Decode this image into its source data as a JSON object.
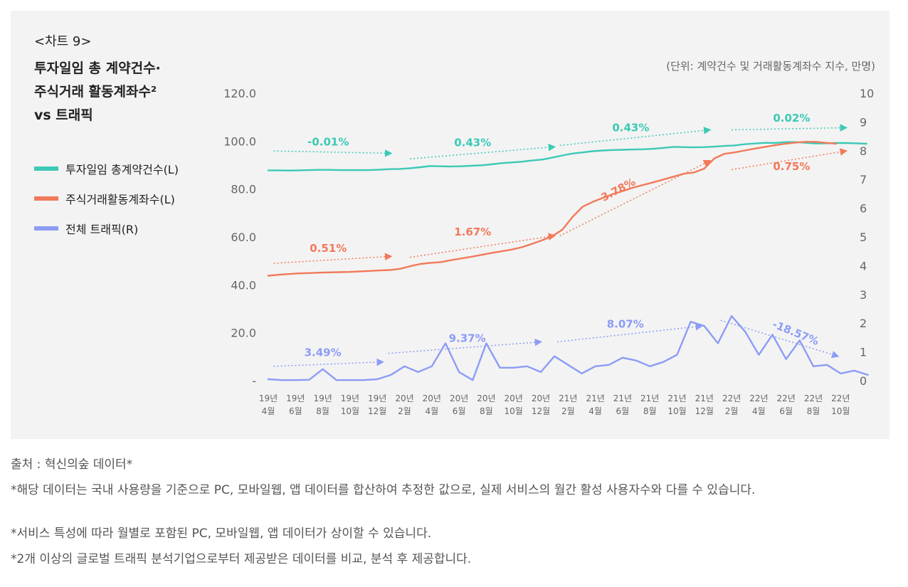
{
  "chart_label": "<차트 9>",
  "title_lines": [
    "투자일임 총 계약건수·",
    "주식거래 활동계좌수²",
    "vs 트래픽"
  ],
  "unit": "(단위: 계약건수 및 거래활동계좌수 지수, 만명)",
  "colors": {
    "contracts": "#3cc9b6",
    "accounts": "#f2795a",
    "traffic": "#8c9cf5",
    "panel": "#f3f3f3"
  },
  "chart_data": {
    "type": "line",
    "title": "투자일임 총 계약건수·주식거래 활동계좌수² vs 트래픽",
    "left_axis": {
      "ticks": [
        "120.0",
        "100.0",
        "80.0",
        "60.0",
        "40.0",
        "20.0",
        "-"
      ],
      "range": [
        0,
        120
      ]
    },
    "right_axis": {
      "ticks": [
        "10",
        "9",
        "8",
        "7",
        "6",
        "5",
        "4",
        "3",
        "2",
        "1",
        "0"
      ],
      "range": [
        0,
        10
      ]
    },
    "x_labels": [
      [
        "19년",
        "4월"
      ],
      [
        "19년",
        "6월"
      ],
      [
        "19년",
        "8월"
      ],
      [
        "19년",
        "10월"
      ],
      [
        "19년",
        "12월"
      ],
      [
        "20년",
        "2월"
      ],
      [
        "20년",
        "4월"
      ],
      [
        "20년",
        "6월"
      ],
      [
        "20년",
        "8월"
      ],
      [
        "20년",
        "10월"
      ],
      [
        "20년",
        "12월"
      ],
      [
        "21년",
        "2월"
      ],
      [
        "21년",
        "4월"
      ],
      [
        "21년",
        "6월"
      ],
      [
        "21년",
        "8월"
      ],
      [
        "21년",
        "10월"
      ],
      [
        "21년",
        "12월"
      ],
      [
        "22년",
        "2월"
      ],
      [
        "22년",
        "4월"
      ],
      [
        "22년",
        "6월"
      ],
      [
        "22년",
        "8월"
      ],
      [
        "22년",
        "10월"
      ]
    ],
    "series": [
      {
        "name": "투자일임 총계약건수(L)",
        "axis": "left",
        "color": "#3cc9b6",
        "values": [
          87.8,
          87.8,
          87.7,
          87.8,
          87.9,
          88.0,
          88.0,
          87.9,
          87.9,
          87.9,
          87.9,
          88.1,
          88.3,
          88.4,
          88.7,
          89.1,
          89.6,
          89.5,
          89.4,
          89.5,
          89.7,
          89.9,
          90.3,
          90.8,
          91.1,
          91.4,
          91.9,
          92.3,
          93.1,
          94.0,
          94.8,
          95.3,
          95.8,
          96.1,
          96.3,
          96.4,
          96.5,
          96.6,
          96.8,
          97.2,
          97.6,
          97.5,
          97.4,
          97.5,
          97.7,
          98.0,
          98.2,
          98.7,
          99.0,
          99.3,
          99.2,
          99.6,
          99.6,
          99.3,
          99.0,
          99.1,
          99.2,
          99.2,
          99.1,
          98.9
        ],
        "stride_ratio": 0.372
      },
      {
        "name": "주식거래활동계좌수(L)",
        "axis": "left",
        "color": "#f2795a",
        "values": [
          43.8,
          44.2,
          44.5,
          44.8,
          44.9,
          45.1,
          45.2,
          45.3,
          45.4,
          45.6,
          45.8,
          46.0,
          46.2,
          46.7,
          47.8,
          48.7,
          49.2,
          49.5,
          50.3,
          51.0,
          51.7,
          52.5,
          53.3,
          54.0,
          54.7,
          55.7,
          57.1,
          58.6,
          60.3,
          63.0,
          68.3,
          72.6,
          74.6,
          76.3,
          77.9,
          79.2,
          80.6,
          81.7,
          82.8,
          84.0,
          85.2,
          86.4,
          86.9,
          88.5,
          92.8,
          94.7,
          95.3,
          96.1,
          96.9,
          97.6,
          98.3,
          98.9,
          99.4,
          99.7,
          99.7,
          99.3,
          98.9
        ],
        "stride_ratio": 0.372
      },
      {
        "name": "전체 트래픽(R)",
        "axis": "right",
        "color": "#8c9cf5",
        "values": [
          0.05,
          0.02,
          0.02,
          0.03,
          0.4,
          0.02,
          0.02,
          0.02,
          0.05,
          0.2,
          0.5,
          0.3,
          0.5,
          1.3,
          0.3,
          0.02,
          1.3,
          0.45,
          0.45,
          0.5,
          0.3,
          0.85,
          0.55,
          0.25,
          0.5,
          0.55,
          0.8,
          0.7,
          0.5,
          0.65,
          0.9,
          2.05,
          1.9,
          1.3,
          2.25,
          1.7,
          0.9,
          1.6,
          0.75,
          1.4,
          0.5,
          0.55,
          0.25,
          0.35,
          0.2
        ],
        "stride_ratio": 0.5
      }
    ],
    "annotations": [
      {
        "series": "contracts",
        "label": "-0.01%",
        "from": [
          0.2,
          95.9
        ],
        "to": [
          4.5,
          94.9
        ],
        "tx": 2.2,
        "ty": 98.2,
        "angle": 0
      },
      {
        "series": "contracts",
        "label": "0.43%",
        "from": [
          5.2,
          92.6
        ],
        "to": [
          10.5,
          97.6
        ],
        "tx": 7.5,
        "ty": 97.8,
        "angle": 0
      },
      {
        "series": "contracts",
        "label": "0.43%",
        "from": [
          10.7,
          98.2
        ],
        "to": [
          16.2,
          104.7
        ],
        "tx": 13.3,
        "ty": 104.1,
        "angle": 0
      },
      {
        "series": "contracts",
        "label": "0.02%",
        "from": [
          17.0,
          104.7
        ],
        "to": [
          21.2,
          105.6
        ],
        "tx": 19.2,
        "ty": 108.1,
        "angle": 0
      },
      {
        "series": "accounts",
        "label": "0.51%",
        "from": [
          0.2,
          49.0
        ],
        "to": [
          4.5,
          51.9
        ],
        "tx": 2.2,
        "ty": 53.8,
        "angle": 0
      },
      {
        "series": "accounts",
        "label": "1.67%",
        "from": [
          5.2,
          51.5
        ],
        "to": [
          10.5,
          60.5
        ],
        "tx": 7.5,
        "ty": 60.6,
        "angle": 0
      },
      {
        "series": "accounts",
        "label": "3.78%",
        "from": [
          10.7,
          60.5
        ],
        "to": [
          16.2,
          91.8
        ],
        "tx": 12.9,
        "ty": 78.4,
        "angle": -28
      },
      {
        "series": "accounts",
        "label": "0.75%",
        "from": [
          17.0,
          88.1
        ],
        "to": [
          21.2,
          95.9
        ],
        "tx": 19.2,
        "ty": 87.9,
        "angle": 0
      },
      {
        "series": "traffic",
        "label": "3.49%",
        "from": [
          0.2,
          0.5
        ],
        "to": [
          4.2,
          0.65
        ],
        "tx": 2.0,
        "ty": 0.85,
        "angle": 0
      },
      {
        "series": "traffic",
        "label": "9.37%",
        "from": [
          4.4,
          0.95
        ],
        "to": [
          10.0,
          1.35
        ],
        "tx": 7.3,
        "ty": 1.35,
        "angle": 0
      },
      {
        "series": "traffic",
        "label": "8.07%",
        "from": [
          10.6,
          1.35
        ],
        "to": [
          15.9,
          1.9
        ],
        "tx": 13.1,
        "ty": 1.85,
        "angle": 0
      },
      {
        "series": "traffic",
        "label": "-18.57%",
        "from": [
          16.6,
          2.1
        ],
        "to": [
          20.9,
          0.85
        ],
        "tx": 19.3,
        "ty": 1.55,
        "angle": 22
      }
    ]
  },
  "legend": [
    {
      "label": "투자일임 총계약건수(L)",
      "color": "#3cc9b6"
    },
    {
      "label": "주식거래활동계좌수(L)",
      "color": "#f2795a"
    },
    {
      "label": "전체 트래픽(R)",
      "color": "#8c9cf5"
    }
  ],
  "footnotes": [
    "출처 : 혁신의숲 데이터*",
    "*해당 데이터는 국내 사용량을 기준으로 PC, 모바일웹, 앱 데이터를 합산하여 추정한 값으로, 실제 서비스의 월간 활성 사용자수와 다를 수 있습니다.",
    "*서비스 특성에 따라 월별로 포함된 PC, 모바일웹, 앱 데이터가 상이할 수 있습니다.",
    "*2개 이상의 글로벌 트래픽 분석기업으로부터 제공받은 데이터를 비교, 분석 후 제공합니다."
  ]
}
